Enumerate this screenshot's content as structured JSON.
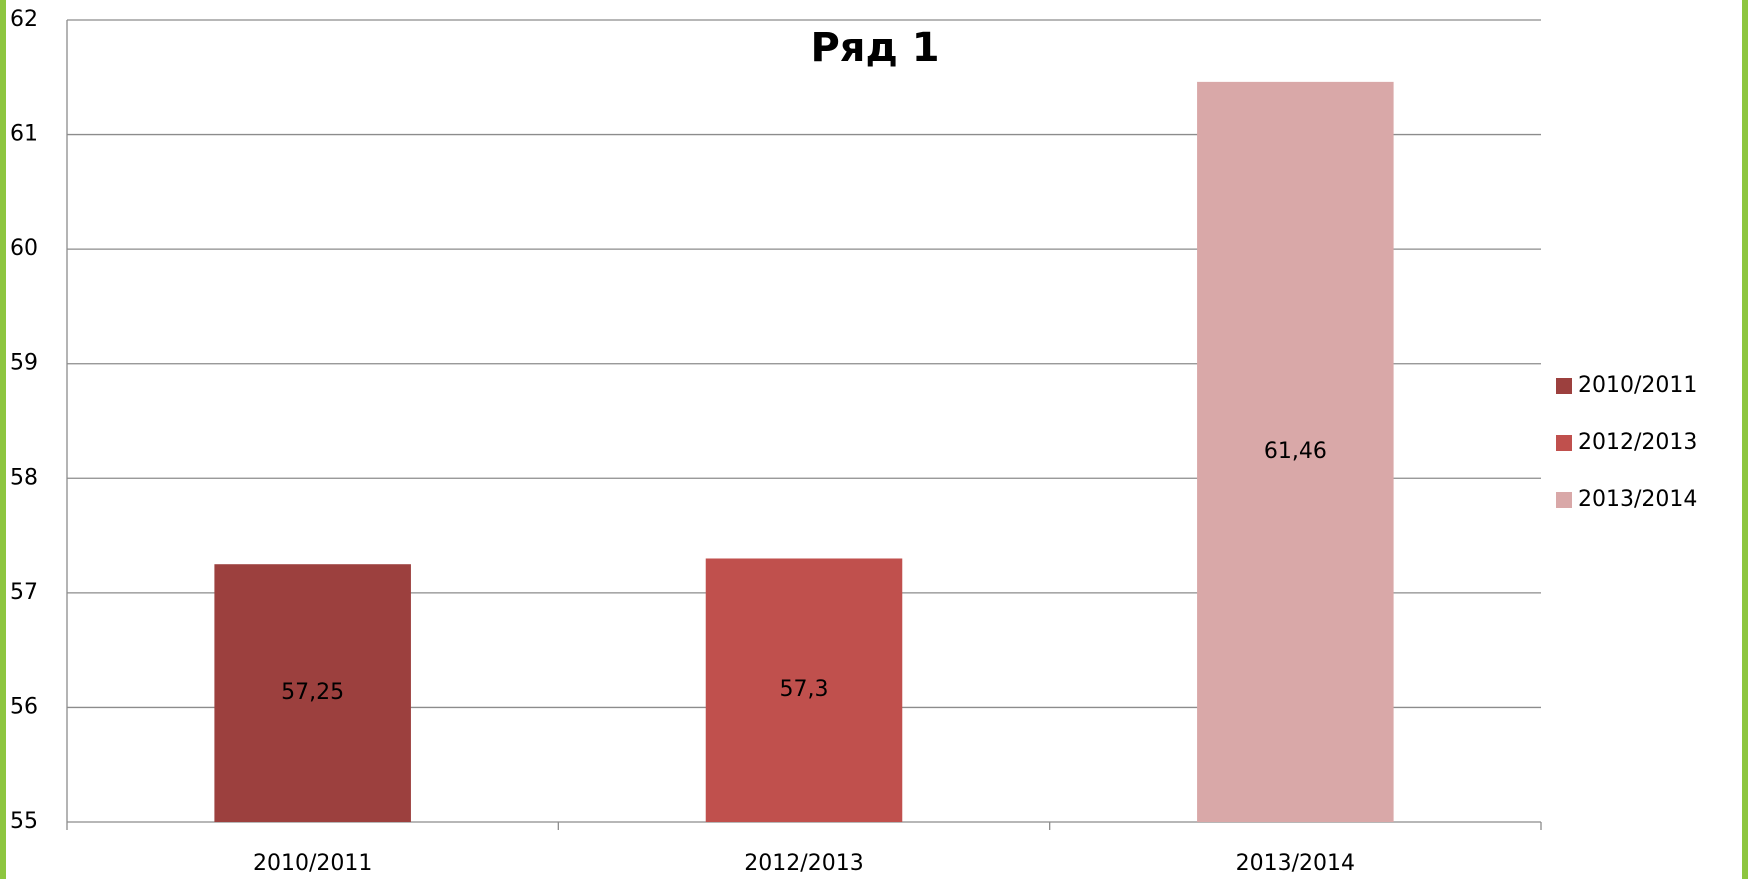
{
  "chart_data": {
    "type": "bar",
    "title": "Ряд 1",
    "categories": [
      "2010/2011",
      "2012/2013",
      "2013/2014"
    ],
    "values": [
      57.25,
      57.3,
      61.46
    ],
    "value_labels": [
      "57,25",
      "57,3",
      "61,46"
    ],
    "colors": [
      "#9c403e",
      "#c0504d",
      "#d9a8a8"
    ],
    "ylim": [
      55,
      62
    ],
    "yticks": [
      55,
      56,
      57,
      58,
      59,
      60,
      61,
      62
    ],
    "grid": true,
    "legend": "right"
  }
}
